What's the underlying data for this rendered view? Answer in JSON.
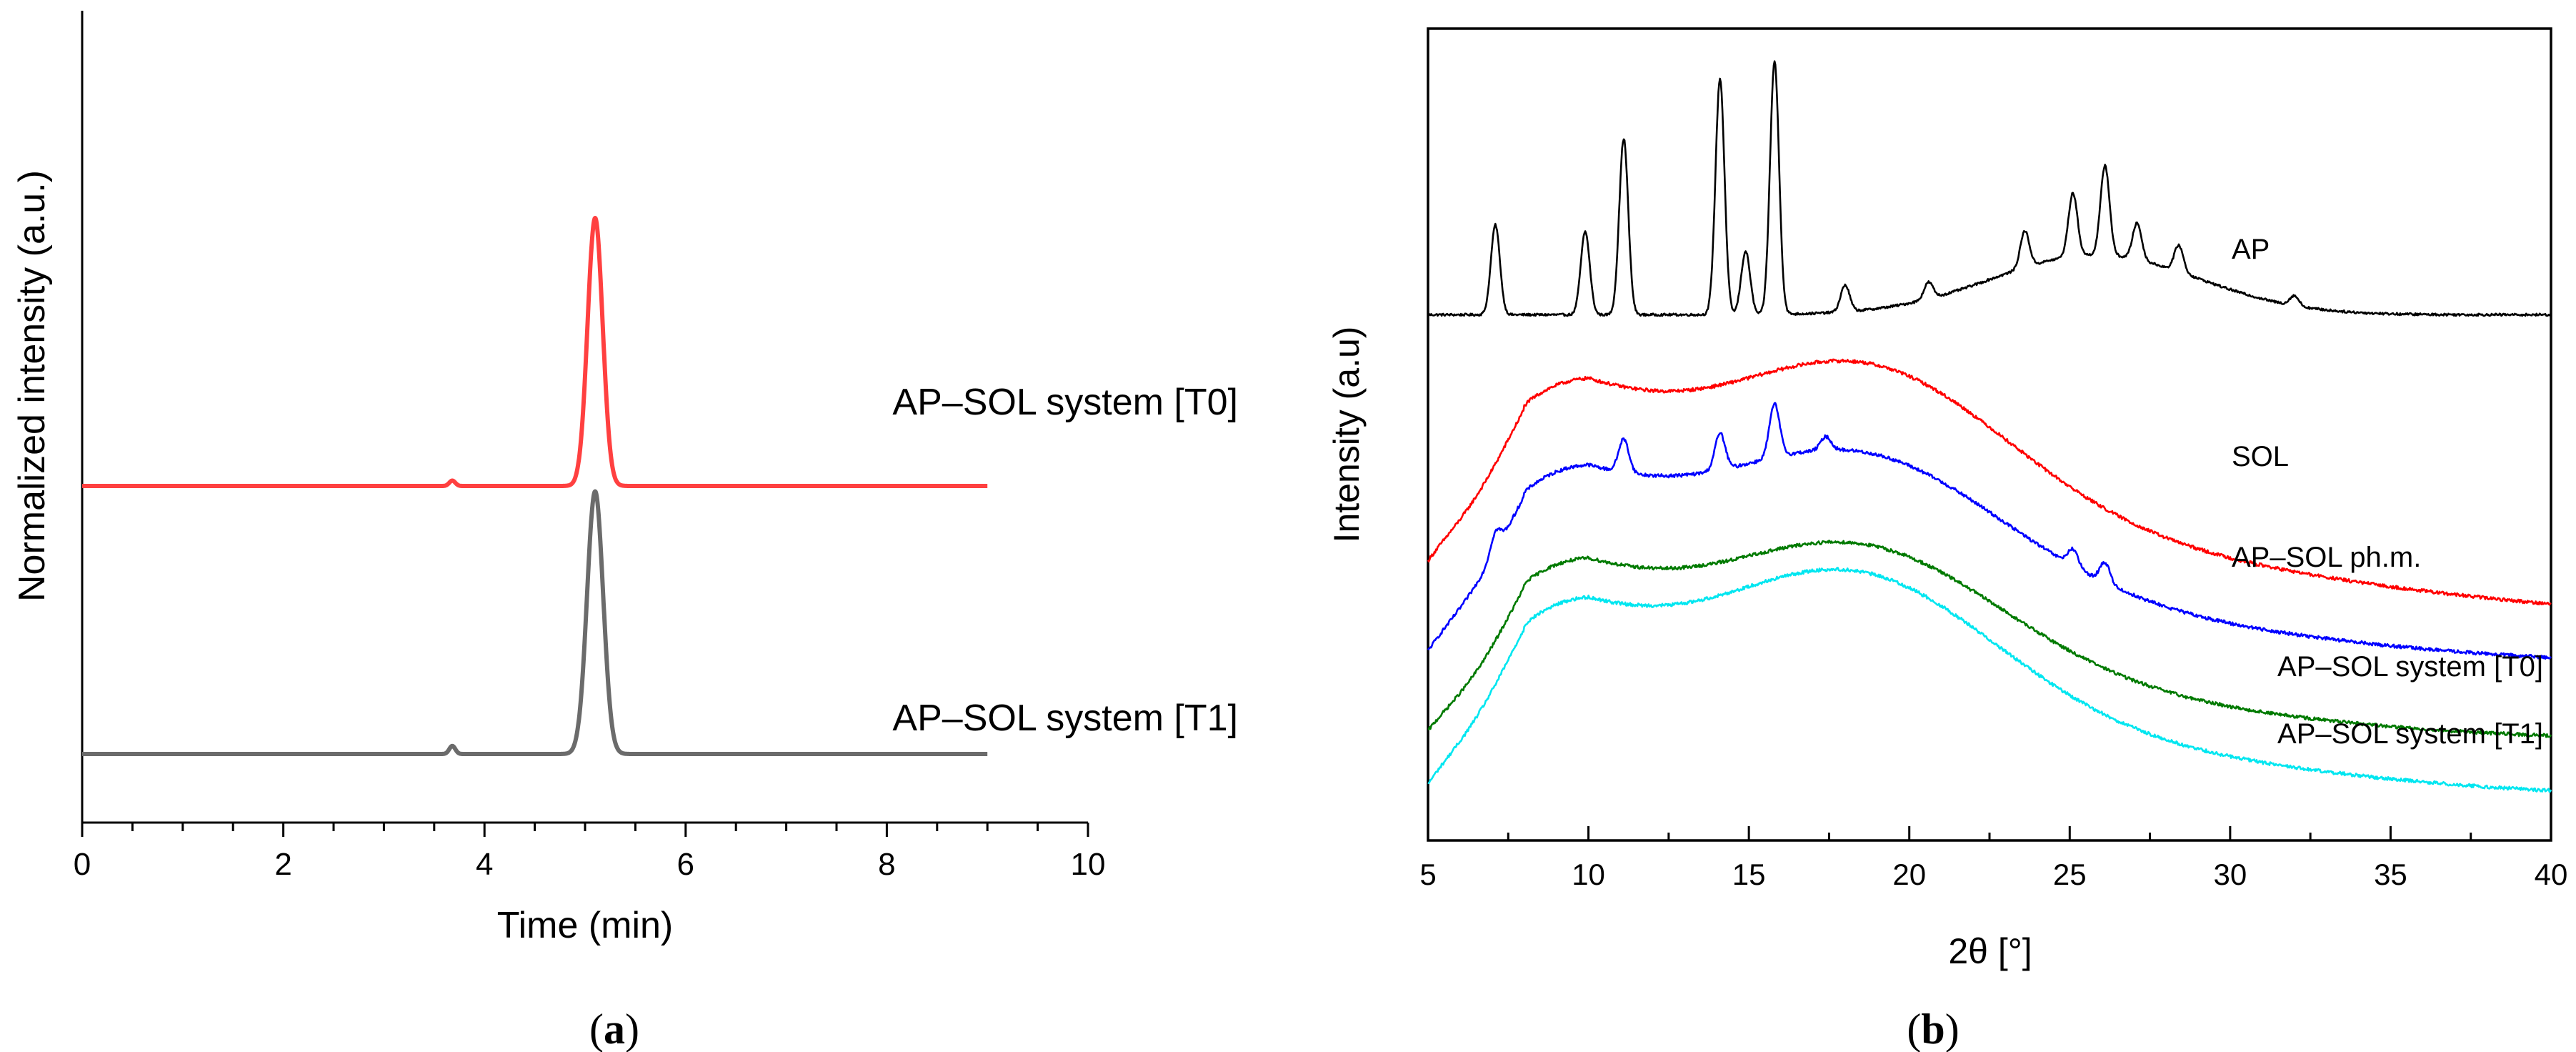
{
  "chart_data": [
    {
      "panel": "a",
      "type": "line",
      "caption": "(a)",
      "caption_letter": "a",
      "xlabel": "Time (min)",
      "ylabel": "Normalized intensity (a.u.)",
      "xlim": [
        0,
        10
      ],
      "x_ticks": [
        0,
        2,
        4,
        6,
        8,
        10
      ],
      "x_tick_labels": [
        "0",
        "2",
        "4",
        "6",
        "8",
        "10"
      ],
      "y_ticks": false,
      "grid": false,
      "series": [
        {
          "name": "AP–SOL system [T0]",
          "color": "#ff4040",
          "baseline": 1.0,
          "x_end": 9.0,
          "peaks": [
            {
              "x": 5.1,
              "height": 1.0,
              "width": 0.075
            },
            {
              "x": 3.68,
              "height": 0.02,
              "width": 0.03
            }
          ]
        },
        {
          "name": "AP–SOL system [T1]",
          "color": "#6b6b6b",
          "baseline": 0.0,
          "x_end": 9.0,
          "peaks": [
            {
              "x": 5.1,
              "height": 0.98,
              "width": 0.08
            },
            {
              "x": 3.68,
              "height": 0.03,
              "width": 0.03
            }
          ]
        }
      ]
    },
    {
      "panel": "b",
      "type": "line",
      "caption": "(b)",
      "caption_letter": "b",
      "xlabel": "2θ [°]",
      "ylabel": "Intensity (a.u)",
      "xlim": [
        5,
        40
      ],
      "x_ticks": [
        5,
        10,
        15,
        20,
        25,
        30,
        35,
        40
      ],
      "x_tick_labels": [
        "5",
        "10",
        "15",
        "20",
        "25",
        "30",
        "35",
        "40"
      ],
      "y_ticks": false,
      "grid": false,
      "series": [
        {
          "name": "AP",
          "color": "#000000",
          "baseline": 4.9,
          "hump": {
            "center": 25.8,
            "height": 0.9,
            "width": 3.2
          },
          "peaks": [
            {
              "x": 7.1,
              "height": 1.35
            },
            {
              "x": 9.9,
              "height": 1.25
            },
            {
              "x": 11.1,
              "height": 2.65
            },
            {
              "x": 14.1,
              "height": 3.55
            },
            {
              "x": 14.9,
              "height": 0.95
            },
            {
              "x": 15.8,
              "height": 3.8
            },
            {
              "x": 18.0,
              "height": 0.4
            },
            {
              "x": 20.6,
              "height": 0.25
            },
            {
              "x": 23.6,
              "height": 0.55
            },
            {
              "x": 25.1,
              "height": 0.95
            },
            {
              "x": 26.1,
              "height": 1.35
            },
            {
              "x": 27.1,
              "height": 0.55
            },
            {
              "x": 28.4,
              "height": 0.4
            },
            {
              "x": 32.0,
              "height": 0.15
            }
          ]
        },
        {
          "name": "SOL",
          "color": "#ff0000",
          "baseline": 0.45,
          "low_angle_start": 1.2,
          "plateau": 3.9,
          "amorphous_center": 19.0,
          "amorphous_height": 1.75,
          "peaks": []
        },
        {
          "name": "AP–SOL ph.m.",
          "color": "#0000ff",
          "baseline": -0.3,
          "low_angle_start": -0.15,
          "plateau": 2.6,
          "amorphous_center": 18.8,
          "amorphous_height": 1.55,
          "peaks": [
            {
              "x": 7.1,
              "height": 0.3
            },
            {
              "x": 11.1,
              "height": 0.5
            },
            {
              "x": 14.1,
              "height": 0.55
            },
            {
              "x": 15.8,
              "height": 0.8
            },
            {
              "x": 17.4,
              "height": 0.2
            },
            {
              "x": 25.1,
              "height": 0.25
            },
            {
              "x": 26.1,
              "height": 0.3
            }
          ]
        },
        {
          "name": "AP–SOL system [T0]",
          "color": "#007a00",
          "baseline": -1.45,
          "low_angle_start": -1.35,
          "plateau": 1.2,
          "amorphous_center": 18.8,
          "amorphous_height": 1.5,
          "peaks": []
        },
        {
          "name": "AP–SOL system [T1]",
          "color": "#00e6f0",
          "baseline": -2.3,
          "low_angle_start": -2.15,
          "plateau": 0.6,
          "amorphous_center": 18.6,
          "amorphous_height": 1.75,
          "peaks": []
        }
      ]
    }
  ]
}
